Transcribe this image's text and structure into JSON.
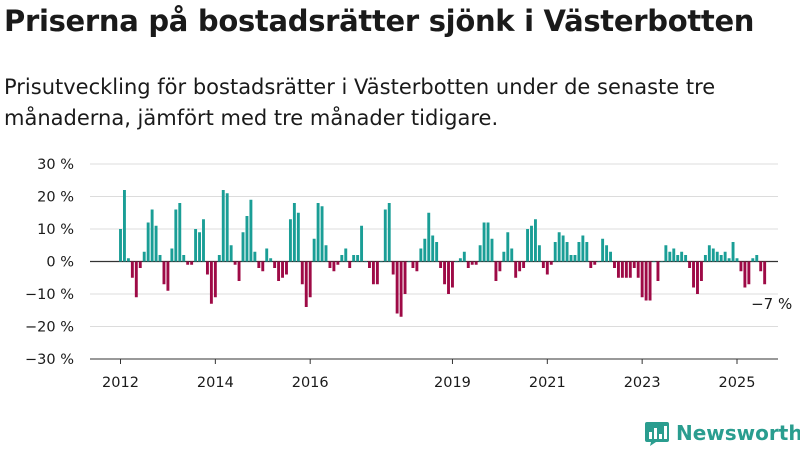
{
  "title": "Priserna på bostadsrätter sjönk i Västerbotten",
  "subtitle": "Prisutveckling för bostadsrätter i Västerbotten under de senaste tre månaderna, jämfört med tre månader tidigare.",
  "brand": {
    "name": "Newsworthy",
    "icon": "newsworthy-logo-icon"
  },
  "colors": {
    "positive": "#1a9e96",
    "negative": "#9e0a46",
    "grid": "#dcdcdc",
    "axis": "#333333"
  },
  "chart_data": {
    "type": "bar",
    "title": "",
    "xlabel": "",
    "ylabel": "",
    "ylim": [
      -30,
      30
    ],
    "grid": true,
    "y_ticks": [
      30,
      20,
      10,
      0,
      -10,
      -20,
      -30
    ],
    "y_tick_labels": [
      "30 %",
      "20 %",
      "10 %",
      "0 %",
      "−10 %",
      "−20 %",
      "−30 %"
    ],
    "x_tick_labels": [
      "2012",
      "2014",
      "2016",
      "2019",
      "2021",
      "2023",
      "2025"
    ],
    "x_start": "2012-01",
    "x_end": "2025-06",
    "annotation": "−7 %",
    "values": [
      10,
      22,
      1,
      -5,
      -11,
      -2,
      3,
      12,
      16,
      11,
      2,
      -7,
      -9,
      4,
      16,
      18,
      2,
      -1,
      -1,
      10,
      9,
      13,
      -4,
      -13,
      -11,
      2,
      22,
      21,
      5,
      -1,
      -6,
      9,
      14,
      19,
      3,
      -2,
      -3,
      4,
      1,
      -2,
      -6,
      -5,
      -4,
      13,
      18,
      15,
      -7,
      -14,
      -11,
      7,
      18,
      17,
      5,
      -2,
      -3,
      -1,
      2,
      4,
      -2,
      2,
      2,
      11,
      0,
      -2,
      -7,
      -7,
      0,
      16,
      18,
      -4,
      -16,
      -17,
      -10,
      0,
      -2,
      -3,
      4,
      7,
      15,
      8,
      6,
      -2,
      -7,
      -10,
      -8,
      0,
      1,
      3,
      -2,
      -1,
      -1,
      5,
      12,
      12,
      7,
      -6,
      -3,
      3,
      9,
      4,
      -5,
      -3,
      -2,
      10,
      11,
      13,
      5,
      -2,
      -4,
      -1,
      6,
      9,
      8,
      6,
      2,
      2,
      6,
      8,
      6,
      -2,
      -1,
      0,
      7,
      5,
      3,
      -2,
      -5,
      -5,
      -5,
      -5,
      -2,
      -5,
      -11,
      -12,
      -12,
      0,
      -6,
      0,
      5,
      3,
      4,
      2,
      3,
      2,
      -2,
      -8,
      -10,
      -6,
      2,
      5,
      4,
      3,
      2,
      3,
      1,
      6,
      1,
      -3,
      -8,
      -7,
      1,
      2,
      -3,
      -7
    ]
  }
}
